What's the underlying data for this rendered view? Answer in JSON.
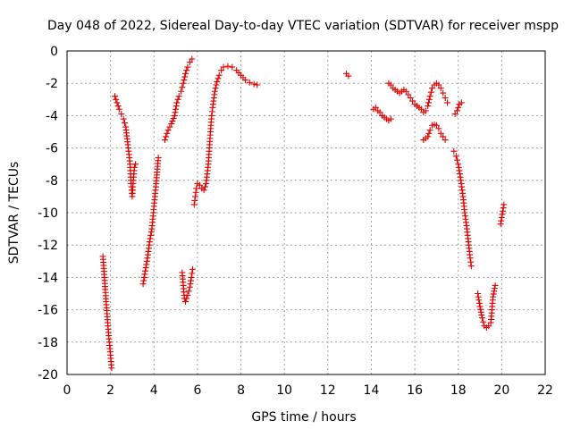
{
  "chart_data": {
    "type": "scatter",
    "title": "Day 048 of 2022, Sidereal Day-to-day VTEC variation (SDTVAR) for receiver mspp",
    "xlabel": "GPS time / hours",
    "ylabel": "SDTVAR / TECUs",
    "xlim": [
      0,
      22
    ],
    "ylim": [
      -20,
      0
    ],
    "x_ticks": [
      "0",
      "2",
      "4",
      "6",
      "8",
      "10",
      "12",
      "14",
      "16",
      "18",
      "20",
      "22"
    ],
    "y_ticks": [
      "0",
      "-2",
      "-4",
      "-6",
      "-8",
      "-10",
      "-12",
      "-14",
      "-16",
      "-18",
      "-20"
    ],
    "grid": true,
    "marker": "+",
    "color": "#e00000",
    "series": [
      {
        "name": "seg1",
        "points": [
          [
            1.65,
            -12.7
          ],
          [
            1.72,
            -14.0
          ],
          [
            1.8,
            -15.5
          ],
          [
            1.87,
            -16.8
          ],
          [
            1.93,
            -17.8
          ],
          [
            2.0,
            -18.8
          ],
          [
            2.05,
            -19.6
          ]
        ]
      },
      {
        "name": "seg2",
        "points": [
          [
            2.2,
            -2.8
          ],
          [
            2.3,
            -3.2
          ],
          [
            2.4,
            -3.6
          ],
          [
            2.5,
            -3.9
          ],
          [
            2.6,
            -4.2
          ],
          [
            2.7,
            -4.7
          ],
          [
            2.8,
            -5.8
          ],
          [
            2.9,
            -7.0
          ],
          [
            2.95,
            -8.2
          ],
          [
            3.0,
            -9.0
          ],
          [
            3.05,
            -8.0
          ],
          [
            3.1,
            -7.2
          ],
          [
            3.15,
            -7.0
          ]
        ]
      },
      {
        "name": "seg3",
        "points": [
          [
            3.5,
            -14.4
          ],
          [
            3.6,
            -13.6
          ],
          [
            3.7,
            -12.8
          ],
          [
            3.8,
            -11.8
          ],
          [
            3.9,
            -11.0
          ],
          [
            4.0,
            -9.6
          ],
          [
            4.1,
            -8.2
          ],
          [
            4.2,
            -6.6
          ]
        ]
      },
      {
        "name": "seg4",
        "points": [
          [
            4.5,
            -5.5
          ],
          [
            4.65,
            -4.9
          ],
          [
            4.8,
            -4.5
          ],
          [
            4.95,
            -4.0
          ],
          [
            5.05,
            -3.2
          ],
          [
            5.15,
            -2.8
          ],
          [
            5.25,
            -2.5
          ],
          [
            5.35,
            -2.0
          ],
          [
            5.45,
            -1.4
          ],
          [
            5.55,
            -1.0
          ],
          [
            5.65,
            -0.7
          ],
          [
            5.75,
            -0.5
          ]
        ]
      },
      {
        "name": "seg5",
        "points": [
          [
            5.3,
            -13.7
          ],
          [
            5.35,
            -14.5
          ],
          [
            5.4,
            -15.3
          ],
          [
            5.45,
            -15.5
          ],
          [
            5.55,
            -15.1
          ],
          [
            5.65,
            -14.6
          ],
          [
            5.72,
            -14.0
          ],
          [
            5.78,
            -13.5
          ]
        ]
      },
      {
        "name": "seg6",
        "points": [
          [
            5.85,
            -9.5
          ],
          [
            5.9,
            -9.0
          ],
          [
            5.95,
            -8.5
          ],
          [
            6.0,
            -8.2
          ],
          [
            6.1,
            -8.3
          ],
          [
            6.2,
            -8.5
          ],
          [
            6.3,
            -8.6
          ],
          [
            6.4,
            -8.2
          ],
          [
            6.5,
            -7.0
          ],
          [
            6.55,
            -6.0
          ],
          [
            6.6,
            -5.0
          ],
          [
            6.65,
            -4.0
          ],
          [
            6.7,
            -3.5
          ],
          [
            6.8,
            -2.5
          ],
          [
            6.9,
            -1.9
          ],
          [
            7.0,
            -1.5
          ],
          [
            7.1,
            -1.2
          ],
          [
            7.2,
            -1.0
          ],
          [
            7.4,
            -0.95
          ],
          [
            7.6,
            -1.0
          ],
          [
            7.8,
            -1.2
          ],
          [
            8.0,
            -1.5
          ],
          [
            8.2,
            -1.8
          ],
          [
            8.4,
            -1.95
          ],
          [
            8.6,
            -2.05
          ],
          [
            8.75,
            -2.1
          ]
        ]
      },
      {
        "name": "seg7",
        "points": [
          [
            12.85,
            -1.4
          ],
          [
            12.95,
            -1.55
          ]
        ]
      },
      {
        "name": "seg8",
        "points": [
          [
            14.1,
            -3.6
          ],
          [
            14.2,
            -3.5
          ],
          [
            14.3,
            -3.7
          ],
          [
            14.4,
            -3.8
          ],
          [
            14.5,
            -4.0
          ],
          [
            14.6,
            -4.1
          ],
          [
            14.7,
            -4.2
          ],
          [
            14.8,
            -4.3
          ],
          [
            14.9,
            -4.2
          ]
        ]
      },
      {
        "name": "seg9",
        "points": [
          [
            14.8,
            -2.0
          ],
          [
            14.9,
            -2.1
          ],
          [
            15.0,
            -2.3
          ],
          [
            15.1,
            -2.4
          ],
          [
            15.2,
            -2.5
          ],
          [
            15.3,
            -2.6
          ],
          [
            15.4,
            -2.5
          ],
          [
            15.5,
            -2.4
          ],
          [
            15.6,
            -2.5
          ],
          [
            15.7,
            -2.7
          ],
          [
            15.8,
            -2.9
          ],
          [
            15.9,
            -3.1
          ],
          [
            16.0,
            -3.3
          ],
          [
            16.1,
            -3.4
          ],
          [
            16.2,
            -3.5
          ],
          [
            16.3,
            -3.6
          ],
          [
            16.4,
            -3.8
          ],
          [
            16.5,
            -3.7
          ],
          [
            16.6,
            -3.4
          ],
          [
            16.7,
            -2.8
          ],
          [
            16.8,
            -2.3
          ],
          [
            16.9,
            -2.1
          ],
          [
            17.0,
            -2.0
          ],
          [
            17.1,
            -2.1
          ],
          [
            17.2,
            -2.3
          ],
          [
            17.3,
            -2.6
          ],
          [
            17.4,
            -2.9
          ],
          [
            17.5,
            -3.2
          ]
        ]
      },
      {
        "name": "seg10",
        "points": [
          [
            16.4,
            -5.5
          ],
          [
            16.5,
            -5.4
          ],
          [
            16.6,
            -5.3
          ],
          [
            16.7,
            -4.9
          ],
          [
            16.8,
            -4.6
          ],
          [
            16.9,
            -4.55
          ],
          [
            17.0,
            -4.6
          ],
          [
            17.1,
            -4.8
          ],
          [
            17.2,
            -5.1
          ],
          [
            17.3,
            -5.3
          ],
          [
            17.4,
            -5.5
          ]
        ]
      },
      {
        "name": "seg11",
        "points": [
          [
            17.85,
            -3.9
          ],
          [
            17.95,
            -3.7
          ],
          [
            18.05,
            -3.3
          ],
          [
            18.15,
            -3.2
          ]
        ]
      },
      {
        "name": "seg12",
        "points": [
          [
            17.8,
            -6.2
          ],
          [
            17.9,
            -6.5
          ],
          [
            18.0,
            -7.0
          ],
          [
            18.1,
            -7.8
          ],
          [
            18.2,
            -8.8
          ],
          [
            18.3,
            -10.0
          ],
          [
            18.4,
            -11.0
          ],
          [
            18.5,
            -12.2
          ],
          [
            18.55,
            -12.8
          ],
          [
            18.6,
            -13.3
          ]
        ]
      },
      {
        "name": "seg13",
        "points": [
          [
            18.9,
            -15.0
          ],
          [
            19.0,
            -15.8
          ],
          [
            19.1,
            -16.5
          ],
          [
            19.2,
            -17.0
          ],
          [
            19.3,
            -17.1
          ],
          [
            19.4,
            -17.0
          ],
          [
            19.5,
            -16.8
          ],
          [
            19.55,
            -16.0
          ],
          [
            19.6,
            -15.2
          ],
          [
            19.7,
            -14.5
          ]
        ]
      },
      {
        "name": "seg14",
        "points": [
          [
            19.95,
            -10.7
          ],
          [
            20.0,
            -10.3
          ],
          [
            20.05,
            -9.9
          ],
          [
            20.1,
            -9.5
          ]
        ]
      }
    ]
  }
}
